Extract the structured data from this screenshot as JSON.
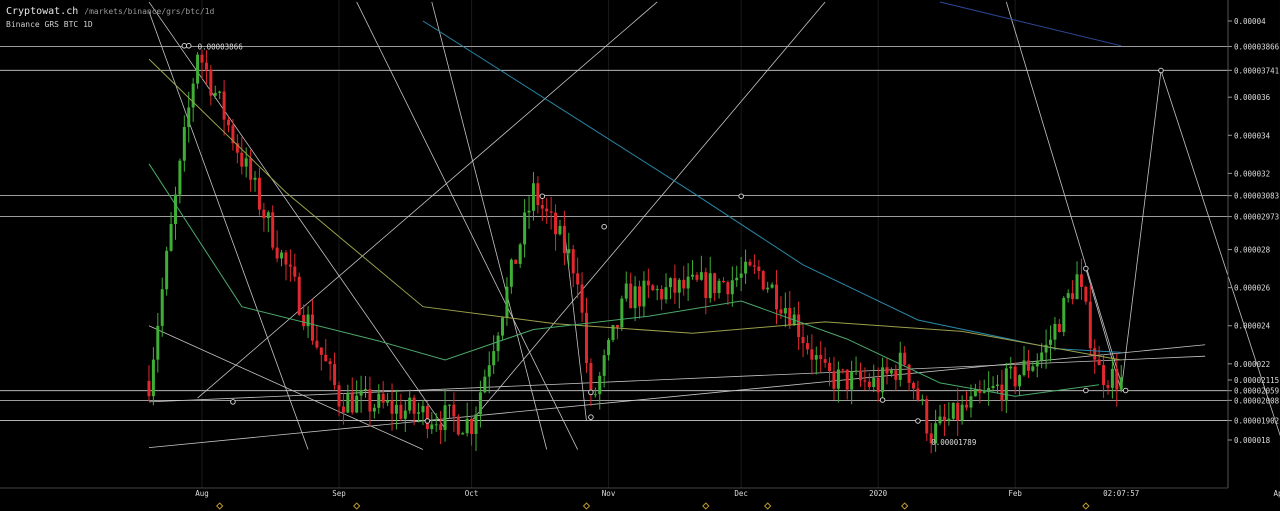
{
  "header": {
    "brand": "Cryptowat.ch",
    "path": "/markets/binance/grs/btc/1d",
    "subtitle": "Binance GRS BTC 1D"
  },
  "chart_data": {
    "type": "candlestick",
    "market": "GRS/BTC",
    "exchange": "Binance",
    "interval": "1D",
    "ylim": [
      1.72e-05,
      4.07e-05
    ],
    "y_ticks": [
      "0.00004",
      "0.00003866",
      "0.00003741",
      "0.000036",
      "0.000034",
      "0.000032",
      "0.00003083",
      "0.00002973",
      "0.000028",
      "0.000026",
      "0.000024",
      "0.000022",
      "0.00002115",
      "0.00002059",
      "0.00002008",
      "0.00001902",
      "0.000018"
    ],
    "x_labels": [
      "Aug",
      "Sep",
      "Oct",
      "Nov",
      "Dec",
      "2020",
      "Feb",
      "02:07:57",
      "Apr"
    ],
    "x_label_dates": [
      "2019-08-01",
      "2019-09-01",
      "2019-10-01",
      "2019-11-01",
      "2019-12-01",
      "2020-01-01",
      "2020-02-01",
      "2020-02-25",
      "2020-04-01"
    ],
    "annotations": [
      {
        "text": "0.00003866",
        "x": "2019-07-31",
        "y": 3.866e-05
      },
      {
        "text": "0.00001789",
        "x": "2020-01-13",
        "y": 1.789e-05
      }
    ],
    "horizontal_lines": [
      3.866e-05,
      3.741e-05,
      3.083e-05,
      2.973e-05,
      2.059e-05,
      2.008e-05,
      1.902e-05
    ],
    "anchors": [
      [
        "2019-07-20",
        2.11e-05
      ],
      [
        "2019-07-31",
        3.85e-05
      ],
      [
        "2019-09-01",
        2.02e-05
      ],
      [
        "2019-10-01",
        1.89e-05
      ],
      [
        "2019-10-15",
        3.1e-05
      ],
      [
        "2019-10-25",
        2.68e-05
      ],
      [
        "2019-10-28",
        1.98e-05
      ],
      [
        "2019-11-05",
        2.55e-05
      ],
      [
        "2019-11-25",
        2.62e-05
      ],
      [
        "2019-12-05",
        2.68e-05
      ],
      [
        "2019-12-12",
        2.48e-05
      ],
      [
        "2019-12-20",
        2.13e-05
      ],
      [
        "2020-01-01",
        2.09e-05
      ],
      [
        "2020-01-07",
        2.22e-05
      ],
      [
        "2020-01-13",
        1.83e-05
      ],
      [
        "2020-01-20",
        1.95e-05
      ],
      [
        "2020-02-01",
        2.13e-05
      ],
      [
        "2020-02-08",
        2.28e-05
      ],
      [
        "2020-02-15",
        2.65e-05
      ],
      [
        "2020-02-20",
        2.16e-05
      ],
      [
        "2020-02-25",
        2.11e-05
      ]
    ],
    "series": [
      {
        "name": "",
        "color": "#2c4a9a",
        "points": [
          [
            "2020-01-15",
            4.1e-05
          ],
          [
            "2020-02-25",
            3.87e-05
          ]
        ]
      },
      {
        "name": "",
        "color": "#2a88a8",
        "points": [
          [
            "2019-09-20",
            4e-05
          ],
          [
            "2019-11-20",
            3.1e-05
          ],
          [
            "2019-12-15",
            2.72e-05
          ],
          [
            "2020-01-10",
            2.43e-05
          ],
          [
            "2020-02-10",
            2.28e-05
          ],
          [
            "2020-02-25",
            2.26e-05
          ]
        ]
      },
      {
        "name": "",
        "color": "#9aa04a",
        "points": [
          [
            "2019-07-20",
            3.8e-05
          ],
          [
            "2019-08-20",
            3.1e-05
          ],
          [
            "2019-09-20",
            2.5e-05
          ],
          [
            "2019-10-20",
            2.41e-05
          ],
          [
            "2019-11-20",
            2.36e-05
          ],
          [
            "2019-12-20",
            2.42e-05
          ],
          [
            "2020-01-20",
            2.37e-05
          ],
          [
            "2020-02-25",
            2.22e-05
          ]
        ]
      },
      {
        "name": "",
        "color": "#4aa86a",
        "points": [
          [
            "2019-07-20",
            3.25e-05
          ],
          [
            "2019-08-10",
            2.5e-05
          ],
          [
            "2019-09-10",
            2.32e-05
          ],
          [
            "2019-09-25",
            2.22e-05
          ],
          [
            "2019-10-15",
            2.38e-05
          ],
          [
            "2019-11-10",
            2.45e-05
          ],
          [
            "2019-12-01",
            2.53e-05
          ],
          [
            "2019-12-25",
            2.33e-05
          ],
          [
            "2020-01-15",
            2.1e-05
          ],
          [
            "2020-02-01",
            2.03e-05
          ],
          [
            "2020-02-20",
            2.09e-05
          ]
        ]
      }
    ],
    "trendlines": [
      [
        [
          "2019-07-20",
          4.1e-05
        ],
        [
          "2019-09-25",
          1.86e-05
        ]
      ],
      [
        [
          "2019-07-20",
          4.05e-05
        ],
        [
          "2019-08-25",
          1.75e-05
        ]
      ],
      [
        [
          "2019-07-20",
          2.4e-05
        ],
        [
          "2019-09-20",
          1.75e-05
        ]
      ],
      [
        [
          "2019-07-20",
          2e-05
        ],
        [
          "2020-03-15",
          2.24e-05
        ]
      ],
      [
        [
          "2019-07-20",
          1.76e-05
        ],
        [
          "2020-03-15",
          2.3e-05
        ]
      ],
      [
        [
          "2019-07-31",
          2.02e-05
        ],
        [
          "2019-11-12",
          4.1e-05
        ]
      ],
      [
        [
          "2019-10-01",
          1.9e-05
        ],
        [
          "2019-12-20",
          4.1e-05
        ]
      ],
      [
        [
          "2019-09-05",
          4.1e-05
        ],
        [
          "2019-10-25",
          1.75e-05
        ]
      ],
      [
        [
          "2019-09-22",
          4.1e-05
        ],
        [
          "2019-10-18",
          1.75e-05
        ]
      ],
      [
        [
          "2019-10-22",
          2.9e-05
        ],
        [
          "2019-10-27",
          1.9e-05
        ]
      ],
      [
        [
          "2020-01-30",
          4.1e-05
        ],
        [
          "2020-02-25",
          2.1e-05
        ]
      ],
      [
        [
          "2020-02-17",
          2.7e-05
        ],
        [
          "2020-02-25",
          2.06e-05
        ]
      ],
      [
        [
          "2020-02-25",
          2.06e-05
        ],
        [
          "2020-02-26",
          2.06e-05
        ]
      ],
      [
        [
          "2020-02-25",
          2.06e-05
        ],
        [
          "2020-03-05",
          3.74e-05
        ]
      ],
      [
        [
          "2020-03-05",
          3.74e-05
        ],
        [
          "2020-04-02",
          1.75e-05
        ]
      ]
    ],
    "markers": [
      [
        "2019-07-28",
        3.87e-05
      ],
      [
        "2019-07-29",
        3.87e-05
      ],
      [
        "2019-08-08",
        2e-05
      ],
      [
        "2019-09-21",
        1.9e-05
      ],
      [
        "2019-10-17",
        3.08e-05
      ],
      [
        "2019-10-28",
        2.05e-05
      ],
      [
        "2019-10-28",
        1.92e-05
      ],
      [
        "2019-10-31",
        2.92e-05
      ],
      [
        "2019-12-01",
        3.08e-05
      ],
      [
        "2020-01-02",
        2.01e-05
      ],
      [
        "2020-01-10",
        1.9e-05
      ],
      [
        "2020-02-17",
        2.7e-05
      ],
      [
        "2020-02-17",
        2.06e-05
      ],
      [
        "2020-02-26",
        2.06e-05
      ],
      [
        "2020-03-05",
        3.74e-05
      ]
    ],
    "x_axis_markers": [
      "2019-08-05",
      "2019-09-05",
      "2019-10-27",
      "2019-11-23",
      "2019-12-07",
      "2020-01-07",
      "2020-02-17"
    ]
  }
}
